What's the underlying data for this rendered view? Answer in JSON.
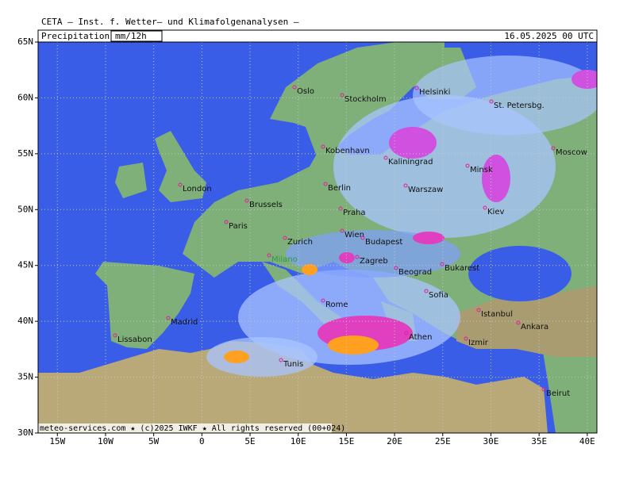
{
  "header": {
    "title": "CETA — Inst. f. Wetter— und Klimafolgenanalysen —",
    "parameter": "Precipitation",
    "unit": "mm/12h",
    "valid_time": "16.05.2025 00 UTC"
  },
  "footer": "meteo-services.com ★ (c)2025 IWKF ★ All rights reserved (00+024)",
  "map": {
    "lon_range": [
      -17,
      41
    ],
    "lat_range": [
      30,
      65
    ],
    "lon_ticks": [
      {
        "value": -15,
        "label": "15W"
      },
      {
        "value": -10,
        "label": "10W"
      },
      {
        "value": -5,
        "label": "5W"
      },
      0,
      {
        "value": 5,
        "label": "5E"
      },
      {
        "value": 10,
        "label": "10E"
      },
      {
        "value": 15,
        "label": "15E"
      },
      {
        "value": 20,
        "label": "20E"
      },
      {
        "value": 25,
        "label": "25E"
      },
      {
        "value": 30,
        "label": "30E"
      },
      {
        "value": 35,
        "label": "35E"
      },
      {
        "value": 40,
        "label": "40E"
      }
    ],
    "lat_ticks": [
      {
        "value": 30,
        "label": "30N"
      },
      {
        "value": 35,
        "label": "35N"
      },
      {
        "value": 40,
        "label": "40N"
      },
      {
        "value": 45,
        "label": "45N"
      },
      {
        "value": 50,
        "label": "50N"
      },
      {
        "value": 55,
        "label": "55N"
      },
      {
        "value": 60,
        "label": "60N"
      },
      {
        "value": 65,
        "label": "65N"
      }
    ]
  },
  "cities": [
    "Oslo",
    "Stockholm",
    "Helsinki",
    "St. Petersbg.",
    "Kobenhavn",
    "Kaliningrad",
    "Minsk",
    "Moscow",
    "London",
    "Berlin",
    "Warszaw",
    "Brussels",
    "Praha",
    "Kiev",
    "Paris",
    "Wien",
    "Budapest",
    "Zurich",
    "Zagreb",
    "Milano",
    "Beograd",
    "Bukarest",
    "Madrid",
    "Rome",
    "Sofia",
    "Istanbul",
    "Ankara",
    "Lissabon",
    "Tunis",
    "Athen",
    "Izmir",
    "Beirut"
  ]
}
